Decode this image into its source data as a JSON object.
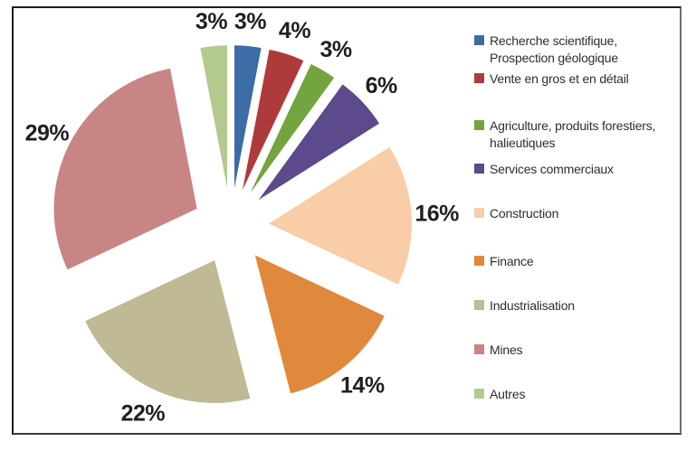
{
  "chart_data": {
    "type": "pie",
    "title": "",
    "unit": "%",
    "direction": "clockwise",
    "start_angle_deg": 0,
    "exploded": true,
    "grid": false,
    "legend_position": "right",
    "background_color": "#ffffff",
    "label_color": "#1f1f1f",
    "segments": [
      {
        "id": "recherche-scientifique",
        "label": "Recherche scientifique, Prospection géologique",
        "legend_lines": [
          "Recherche scientifique,",
          "Prospection géologique"
        ],
        "value": 3,
        "data_label": "3%",
        "color": "#3B6CA5"
      },
      {
        "id": "vente-gros-detail",
        "label": "Vente en gros et en détail",
        "legend_lines": [
          "Vente en gros et en détail"
        ],
        "value": 4,
        "data_label": "4%",
        "color": "#AE3A3C"
      },
      {
        "id": "agriculture",
        "label": "Agriculture, produits forestiers, halieutiques",
        "legend_lines": [
          "Agriculture, produits forestiers,",
          "halieutiques"
        ],
        "value": 3,
        "data_label": "3%",
        "color": "#73A43F"
      },
      {
        "id": "services-commerciaux",
        "label": "Services commerciaux",
        "legend_lines": [
          "Services commerciaux"
        ],
        "value": 6,
        "data_label": "6%",
        "color": "#5C4A8C"
      },
      {
        "id": "construction",
        "label": "Construction",
        "legend_lines": [
          "Construction"
        ],
        "value": 16,
        "data_label": "16%",
        "color": "#F9CDA7"
      },
      {
        "id": "finance",
        "label": "Finance",
        "legend_lines": [
          "Finance"
        ],
        "value": 14,
        "data_label": "14%",
        "color": "#E0883C"
      },
      {
        "id": "industrialisation",
        "label": "Industrialisation",
        "legend_lines": [
          "Industrialisation"
        ],
        "value": 22,
        "data_label": "22%",
        "color": "#BFB995"
      },
      {
        "id": "mines",
        "label": "Mines",
        "legend_lines": [
          "Mines"
        ],
        "value": 29,
        "data_label": "29%",
        "color": "#C98585"
      },
      {
        "id": "autres",
        "label": "Autres",
        "legend_lines": [
          "Autres"
        ],
        "value": 3,
        "data_label": "3%",
        "color": "#B4C98E"
      }
    ]
  }
}
